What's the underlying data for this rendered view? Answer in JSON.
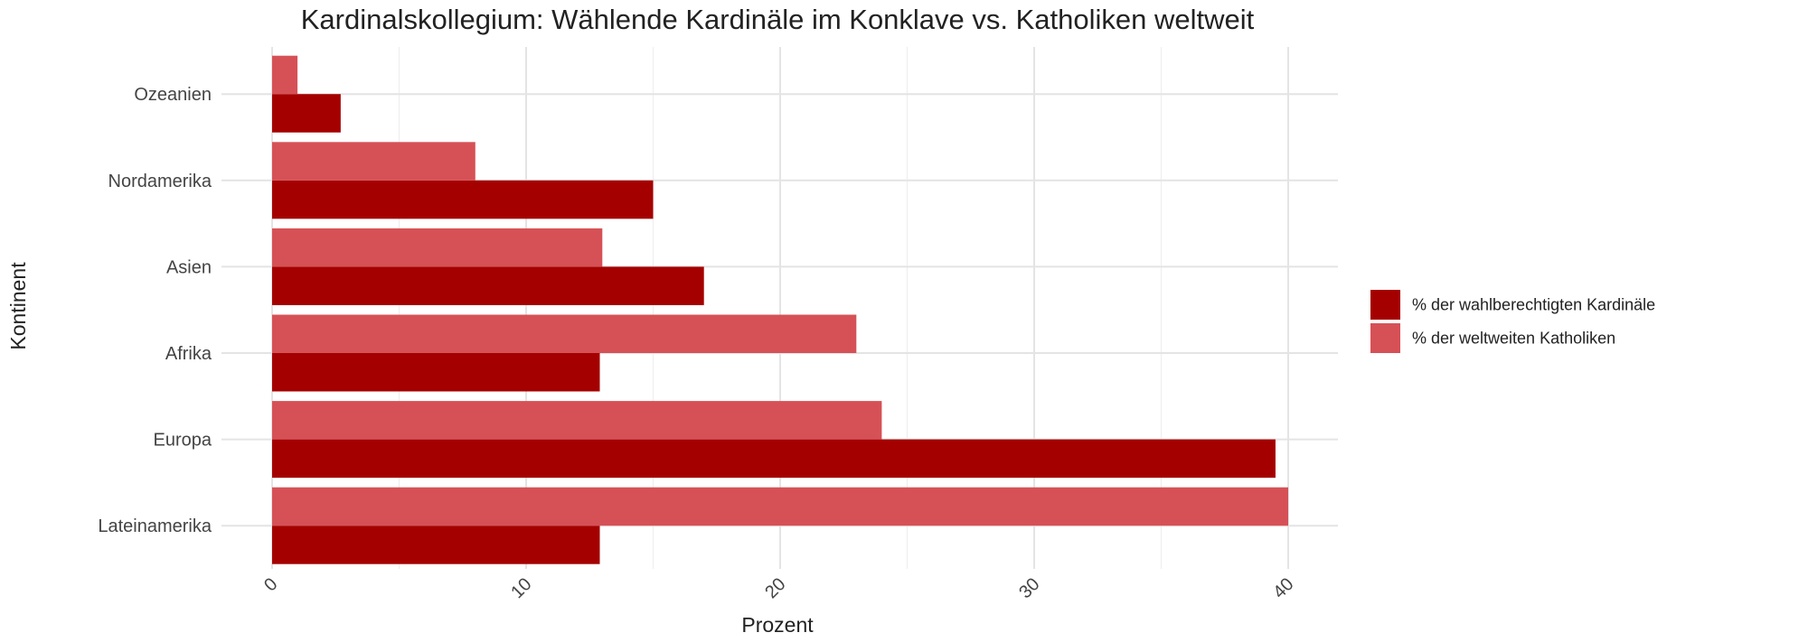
{
  "chart_data": {
    "type": "bar",
    "orientation": "horizontal",
    "title": "Kardinalskollegium: Wählende Kardinäle im Konklave vs. Katholiken weltweit",
    "xlabel": "Prozent",
    "ylabel": "Kontinent",
    "categories": [
      "Lateinamerika",
      "Europa",
      "Afrika",
      "Asien",
      "Nordamerika",
      "Ozeanien"
    ],
    "series": [
      {
        "name": "% der wahlberechtigten Kardinäle",
        "color": "#a50000",
        "values": [
          12.9,
          39.5,
          12.9,
          17.0,
          15.0,
          2.7
        ]
      },
      {
        "name": "% der weltweiten Katholiken",
        "color": "#d65156",
        "values": [
          40.0,
          24.0,
          23.0,
          13.0,
          8.0,
          1.0
        ]
      }
    ],
    "xlim": [
      0,
      42
    ],
    "xticks": [
      "0",
      "10",
      "20",
      "30",
      "40"
    ],
    "grid": true,
    "legend_position": "right"
  }
}
